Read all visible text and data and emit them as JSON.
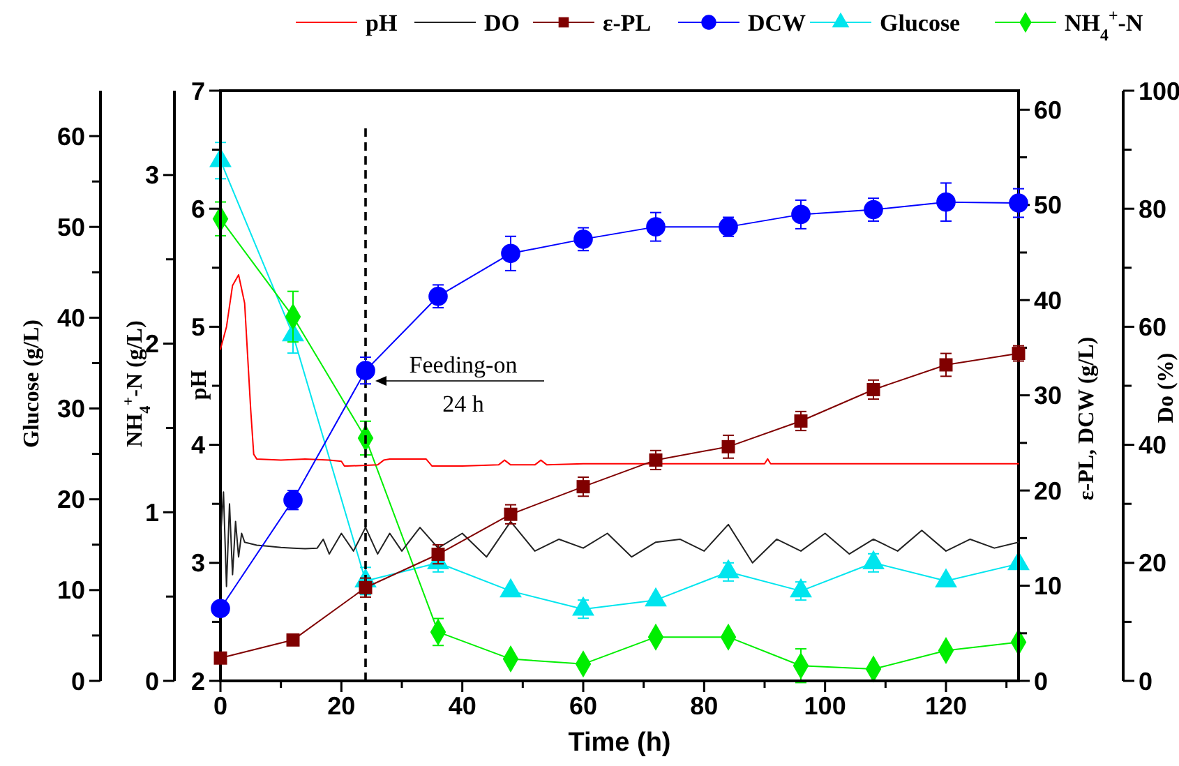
{
  "chart_data": [
    {
      "type": "line",
      "xlabel": "Time (h)",
      "ylabel": "pH",
      "y2label": "ε-PL, DCW (g/L)",
      "y3label": "Do (%)",
      "x": [
        0,
        12,
        24,
        36,
        48,
        60,
        72,
        84,
        96,
        108,
        120,
        132
      ],
      "xlim": [
        0,
        132
      ],
      "xticks": [
        0,
        {
          "value": 10,
          "label": null
        },
        20,
        {
          "value": 30,
          "label": null
        },
        40,
        {
          "value": 50,
          "label": null
        },
        60,
        {
          "value": 70,
          "label": null
        },
        80,
        {
          "value": 90,
          "label": null
        },
        100,
        {
          "value": 110,
          "label": null
        },
        120,
        {
          "value": 130,
          "label": null
        }
      ],
      "ylim": [
        2,
        7
      ],
      "yticks": [
        2,
        {
          "value": 2.5,
          "label": null
        },
        3,
        {
          "value": 3.5,
          "label": null
        },
        4,
        {
          "value": 4.5,
          "label": null
        },
        5,
        {
          "value": 5.5,
          "label": null
        },
        6,
        {
          "value": 6.5,
          "label": null
        },
        7
      ],
      "y2lim": [
        0,
        62
      ],
      "y2ticks": [
        0,
        {
          "value": 5,
          "label": null
        },
        10,
        {
          "value": 15,
          "label": null
        },
        20,
        {
          "value": 25,
          "label": null
        },
        30,
        {
          "value": 35,
          "label": null
        },
        40,
        {
          "value": 45,
          "label": null
        },
        50,
        {
          "value": 55,
          "label": null
        },
        60
      ],
      "y3lim": [
        0,
        100
      ],
      "y3ticks": [
        0,
        {
          "value": 10,
          "label": null
        },
        20,
        {
          "value": 30,
          "label": null
        },
        40,
        {
          "value": 50,
          "label": null
        },
        60,
        {
          "value": 70,
          "label": null
        },
        80,
        {
          "value": 90,
          "label": null
        },
        100
      ],
      "legend": "top",
      "series": [
        {
          "name": "pH",
          "color": "#ff0000",
          "marker": "none",
          "x": [
            0,
            1,
            2,
            3,
            4,
            5,
            5.5,
            6,
            10,
            14,
            18,
            20,
            20.5,
            21,
            26,
            27,
            28,
            30,
            34,
            35,
            40,
            46,
            47,
            48,
            52,
            53,
            54,
            60,
            70,
            85,
            90,
            90.5,
            91,
            100,
            110,
            120,
            132
          ],
          "values": [
            4.81,
            5.0,
            5.35,
            5.44,
            5.2,
            4.3,
            3.92,
            3.88,
            3.87,
            3.88,
            3.87,
            3.86,
            3.82,
            3.82,
            3.83,
            3.87,
            3.88,
            3.88,
            3.88,
            3.82,
            3.82,
            3.83,
            3.87,
            3.83,
            3.83,
            3.87,
            3.83,
            3.84,
            3.84,
            3.84,
            3.84,
            3.88,
            3.84,
            3.84,
            3.84,
            3.84,
            3.84
          ]
        },
        {
          "name": "DO",
          "color": "#222222",
          "axis": "y3",
          "marker": "none",
          "x": [
            0,
            0.5,
            1,
            1.5,
            2,
            2.5,
            3,
            3.5,
            4,
            6,
            8,
            10,
            12,
            14,
            16,
            17,
            18,
            20,
            22,
            24,
            26,
            28,
            30,
            33,
            36,
            40,
            44,
            48,
            52,
            56,
            60,
            64,
            68,
            72,
            76,
            80,
            84,
            88,
            92,
            96,
            100,
            104,
            108,
            112,
            116,
            120,
            124,
            128,
            132
          ],
          "values": [
            24,
            32,
            16,
            30,
            18,
            27,
            21,
            25,
            23.5,
            23,
            22.8,
            22.6,
            22.5,
            22.4,
            22.5,
            24,
            21.5,
            25,
            22,
            26,
            21.5,
            25,
            22,
            26,
            22.5,
            25,
            21,
            27,
            22,
            24,
            22.5,
            25,
            21,
            23.5,
            24,
            22,
            26.5,
            20,
            24,
            22,
            25,
            21.5,
            24,
            22,
            25.5,
            22,
            24,
            22.5,
            23.5
          ]
        },
        {
          "name": "ε-PL",
          "color": "#800000",
          "axis": "y2",
          "marker": "square",
          "values": [
            2.4,
            4.3,
            9.8,
            13.3,
            17.5,
            20.4,
            23.2,
            24.6,
            27.3,
            30.6,
            33.2,
            34.4
          ],
          "errors": [
            null,
            null,
            1,
            1,
            1,
            1,
            1,
            1.2,
            1,
            1,
            1.2,
            0.8
          ]
        },
        {
          "name": "DCW",
          "color": "#0000ff",
          "axis": "y2",
          "marker": "circle",
          "values": [
            7.6,
            19.0,
            32.6,
            40.4,
            44.9,
            46.4,
            47.7,
            47.7,
            49.0,
            49.5,
            50.3,
            50.2
          ],
          "errors": [
            null,
            1,
            1.4,
            1.2,
            1.8,
            1.2,
            1.5,
            1,
            1.5,
            1.2,
            2,
            1.5
          ]
        }
      ],
      "ref_lines": [
        {
          "axis": "x",
          "value": 24,
          "color": "#000000",
          "line_style": "dashed"
        }
      ],
      "annotations": [
        "Feeding-on",
        "24 h"
      ]
    },
    {
      "type": "line",
      "ylabel": "Glucose (g/L)",
      "y2label": "NH$_{4}$$^{+}$-N (g/L)",
      "tick_labels": "y",
      "x": [
        0,
        12,
        24,
        36,
        48,
        60,
        72,
        84,
        96,
        108,
        120,
        132
      ],
      "xlim": [
        0,
        132
      ],
      "ylim": [
        0,
        65
      ],
      "yticks": [
        0,
        10,
        20,
        30,
        40,
        50,
        60
      ],
      "y2lim": [
        0,
        3.5
      ],
      "y2ticks": [
        0,
        1,
        2,
        3
      ],
      "legend": "top",
      "series": [
        {
          "name": "Glucose",
          "color": "#00e5ee",
          "marker": "triangle",
          "values": [
            57.3,
            38.1,
            11.0,
            13.0,
            9.9,
            7.9,
            8.9,
            12.0,
            9.9,
            13.0,
            11.0,
            12.9
          ],
          "errors": [
            2,
            2,
            1.5,
            1,
            null,
            1,
            null,
            1,
            1,
            1,
            null,
            null
          ]
        },
        {
          "name": "NH$_{4}$$^{+}$-N",
          "color": "#00ee00",
          "axis": "y2",
          "marker": "diamond",
          "values": [
            2.74,
            2.16,
            1.44,
            0.29,
            0.13,
            0.1,
            0.26,
            0.26,
            0.09,
            0.07,
            0.18,
            0.23
          ],
          "errors": [
            0.1,
            0.15,
            0.1,
            0.08,
            null,
            null,
            null,
            null,
            0.1,
            null,
            null,
            null
          ]
        }
      ]
    }
  ]
}
